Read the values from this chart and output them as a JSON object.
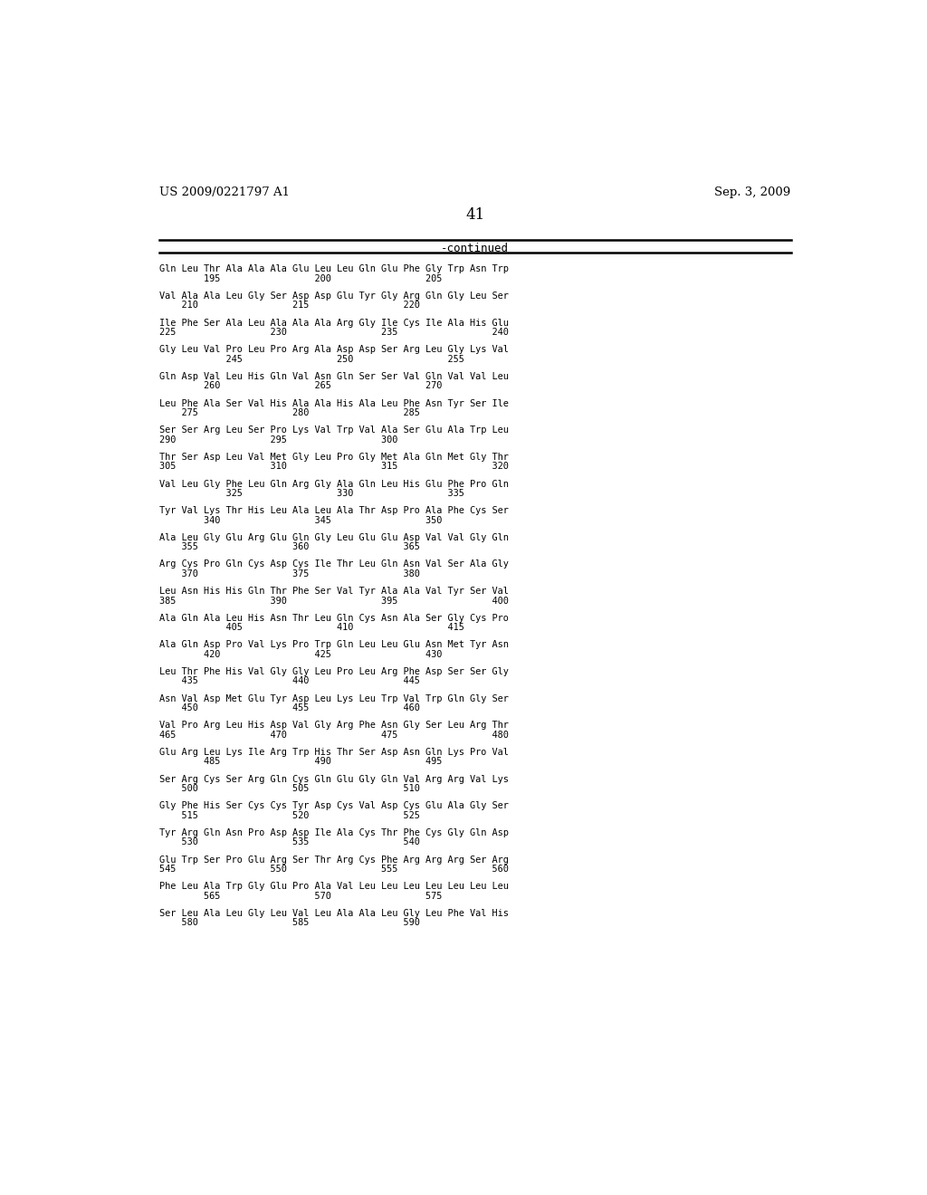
{
  "header_left": "US 2009/0221797 A1",
  "header_right": "Sep. 3, 2009",
  "page_number": "41",
  "continued_label": "-continued",
  "background_color": "#ffffff",
  "text_color": "#000000",
  "lines": [
    [
      "Gln Leu Thr Ala Ala Ala Glu Leu Leu Gln Glu Phe Gly Trp Asn Trp",
      "        195                 200                 205"
    ],
    [
      "Val Ala Ala Leu Gly Ser Asp Asp Glu Tyr Gly Arg Gln Gly Leu Ser",
      "    210                 215                 220"
    ],
    [
      "Ile Phe Ser Ala Leu Ala Ala Ala Arg Gly Ile Cys Ile Ala His Glu",
      "225                 230                 235                 240"
    ],
    [
      "Gly Leu Val Pro Leu Pro Arg Ala Asp Asp Ser Arg Leu Gly Lys Val",
      "            245                 250                 255"
    ],
    [
      "Gln Asp Val Leu His Gln Val Asn Gln Ser Ser Val Gln Val Val Leu",
      "        260                 265                 270"
    ],
    [
      "Leu Phe Ala Ser Val His Ala Ala His Ala Leu Phe Asn Tyr Ser Ile",
      "    275                 280                 285"
    ],
    [
      "Ser Ser Arg Leu Ser Pro Lys Val Trp Val Ala Ser Glu Ala Trp Leu",
      "290                 295                 300"
    ],
    [
      "Thr Ser Asp Leu Val Met Gly Leu Pro Gly Met Ala Gln Met Gly Thr",
      "305                 310                 315                 320"
    ],
    [
      "Val Leu Gly Phe Leu Gln Arg Gly Ala Gln Leu His Glu Phe Pro Gln",
      "            325                 330                 335"
    ],
    [
      "Tyr Val Lys Thr His Leu Ala Leu Ala Thr Asp Pro Ala Phe Cys Ser",
      "        340                 345                 350"
    ],
    [
      "Ala Leu Gly Glu Arg Glu Gln Gly Leu Glu Glu Asp Val Val Gly Gln",
      "    355                 360                 365"
    ],
    [
      "Arg Cys Pro Gln Cys Asp Cys Ile Thr Leu Gln Asn Val Ser Ala Gly",
      "    370                 375                 380"
    ],
    [
      "Leu Asn His His Gln Thr Phe Ser Val Tyr Ala Ala Val Tyr Ser Val",
      "385                 390                 395                 400"
    ],
    [
      "Ala Gln Ala Leu His Asn Thr Leu Gln Cys Asn Ala Ser Gly Cys Pro",
      "            405                 410                 415"
    ],
    [
      "Ala Gln Asp Pro Val Lys Pro Trp Gln Leu Leu Glu Asn Met Tyr Asn",
      "        420                 425                 430"
    ],
    [
      "Leu Thr Phe His Val Gly Gly Leu Pro Leu Arg Phe Asp Ser Ser Gly",
      "    435                 440                 445"
    ],
    [
      "Asn Val Asp Met Glu Tyr Asp Leu Lys Leu Trp Val Trp Gln Gly Ser",
      "    450                 455                 460"
    ],
    [
      "Val Pro Arg Leu His Asp Val Gly Arg Phe Asn Gly Ser Leu Arg Thr",
      "465                 470                 475                 480"
    ],
    [
      "Glu Arg Leu Lys Ile Arg Trp His Thr Ser Asp Asn Gln Lys Pro Val",
      "        485                 490                 495"
    ],
    [
      "Ser Arg Cys Ser Arg Gln Cys Gln Glu Gly Gln Val Arg Arg Val Lys",
      "    500                 505                 510"
    ],
    [
      "Gly Phe His Ser Cys Cys Tyr Asp Cys Val Asp Cys Glu Ala Gly Ser",
      "    515                 520                 525"
    ],
    [
      "Tyr Arg Gln Asn Pro Asp Asp Ile Ala Cys Thr Phe Cys Gly Gln Asp",
      "    530                 535                 540"
    ],
    [
      "Glu Trp Ser Pro Glu Arg Ser Thr Arg Cys Phe Arg Arg Arg Ser Arg",
      "545                 550                 555                 560"
    ],
    [
      "Phe Leu Ala Trp Gly Glu Pro Ala Val Leu Leu Leu Leu Leu Leu Leu",
      "        565                 570                 575"
    ],
    [
      "Ser Leu Ala Leu Gly Leu Val Leu Ala Ala Leu Gly Leu Phe Val His",
      "    580                 585                 590"
    ]
  ]
}
